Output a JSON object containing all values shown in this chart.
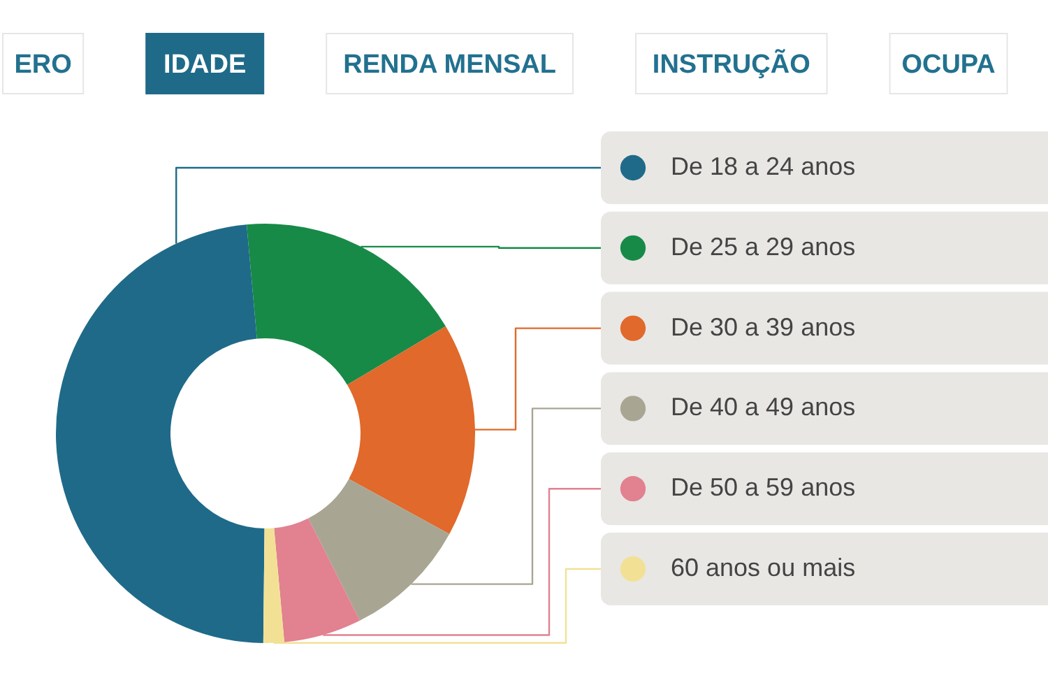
{
  "chart_data": {
    "type": "donut",
    "title": "IDADE",
    "annotations": [
      "ERO",
      "RENDA MENSAL",
      "INSTRUÇÃO",
      "OCUPA"
    ],
    "categories": [
      "De 18 a 24 anos",
      "De 25 a 29 anos",
      "De 30 a 39 anos",
      "De 40 a 49 anos",
      "De 50 a 59 anos",
      "60 anos ou mais"
    ],
    "values": [
      48.4,
      17.9,
      16.5,
      9.6,
      6.0,
      1.6
    ],
    "colors": [
      "#1f6a89",
      "#178a47",
      "#e0692b",
      "#a8a693",
      "#e2818f",
      "#f2e195"
    ],
    "legend": "right"
  }
}
